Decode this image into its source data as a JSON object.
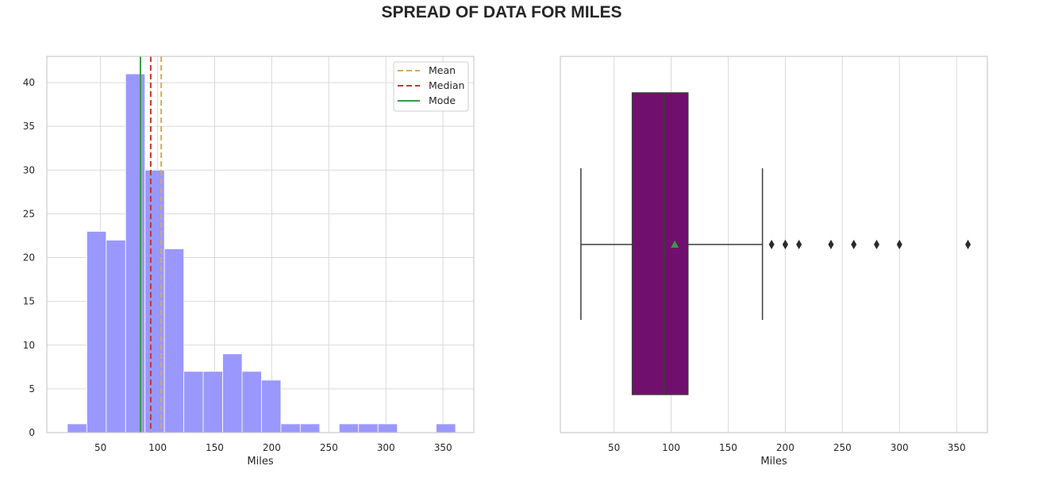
{
  "figure": {
    "title": "SPREAD OF DATA FOR MILES"
  },
  "chart_data": [
    {
      "type": "histogram",
      "xlabel": "Miles",
      "ylabel": "",
      "xlim": [
        3,
        377
      ],
      "ylim": [
        0,
        43
      ],
      "xticks": [
        50,
        100,
        150,
        200,
        250,
        300,
        350
      ],
      "yticks": [
        0,
        5,
        10,
        15,
        20,
        25,
        30,
        35,
        40
      ],
      "grid": true,
      "bin_width": 17,
      "bins": [
        {
          "start": 21,
          "count": 1
        },
        {
          "start": 38,
          "count": 23
        },
        {
          "start": 55,
          "count": 22
        },
        {
          "start": 72,
          "count": 41
        },
        {
          "start": 89,
          "count": 30
        },
        {
          "start": 106,
          "count": 21
        },
        {
          "start": 123,
          "count": 7
        },
        {
          "start": 140,
          "count": 7
        },
        {
          "start": 157,
          "count": 9
        },
        {
          "start": 174,
          "count": 7
        },
        {
          "start": 191,
          "count": 6
        },
        {
          "start": 208,
          "count": 1
        },
        {
          "start": 225,
          "count": 1
        },
        {
          "start": 242,
          "count": 0
        },
        {
          "start": 259,
          "count": 1
        },
        {
          "start": 276,
          "count": 1
        },
        {
          "start": 293,
          "count": 1
        },
        {
          "start": 310,
          "count": 0
        },
        {
          "start": 327,
          "count": 0
        },
        {
          "start": 344,
          "count": 1
        }
      ],
      "bar_color": "#9a98fc",
      "reference_lines": [
        {
          "name": "Mean",
          "value": 103.2,
          "style": "dashed",
          "color": "#d4aa55"
        },
        {
          "name": "Median",
          "value": 94,
          "style": "dashed",
          "color": "#cc3333"
        },
        {
          "name": "Mode",
          "value": 85,
          "style": "solid",
          "color": "#3a9a48"
        }
      ],
      "legend_placement": "top-right"
    },
    {
      "type": "boxplot",
      "orientation": "horizontal",
      "xlabel": "Miles",
      "xlim": [
        3,
        377
      ],
      "xticks": [
        50,
        100,
        150,
        200,
        250,
        300,
        350
      ],
      "grid": true,
      "box_color": "#700f6d",
      "min_whisker": 21,
      "q1": 66,
      "median": 94,
      "q3": 114.75,
      "max_whisker": 180,
      "mean": 103.2,
      "mean_marker_color": "#3a9a48",
      "outliers": [
        188,
        200,
        200,
        212,
        240,
        260,
        280,
        300,
        360
      ]
    }
  ]
}
